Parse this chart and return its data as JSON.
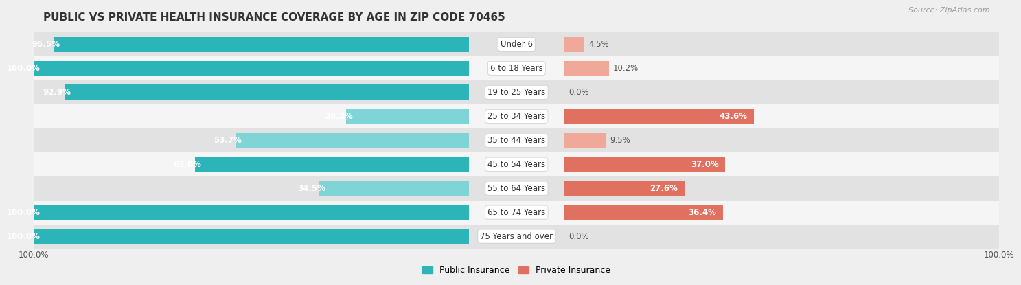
{
  "title": "PUBLIC VS PRIVATE HEALTH INSURANCE COVERAGE BY AGE IN ZIP CODE 70465",
  "source": "Source: ZipAtlas.com",
  "categories": [
    "Under 6",
    "6 to 18 Years",
    "19 to 25 Years",
    "25 to 34 Years",
    "35 to 44 Years",
    "45 to 54 Years",
    "55 to 64 Years",
    "65 to 74 Years",
    "75 Years and over"
  ],
  "public_values": [
    95.5,
    100.0,
    92.9,
    28.2,
    53.7,
    63.0,
    34.5,
    100.0,
    100.0
  ],
  "private_values": [
    4.5,
    10.2,
    0.0,
    43.6,
    9.5,
    37.0,
    27.6,
    36.4,
    0.0
  ],
  "public_color_strong": "#2bb5b8",
  "public_color_light": "#7fd4d6",
  "private_color_strong": "#e07060",
  "private_color_light": "#f0a898",
  "background_color": "#efefef",
  "row_bg_dark": "#e2e2e2",
  "row_bg_light": "#f5f5f5",
  "pub_strong_threshold": 60.0,
  "priv_strong_threshold": 25.0,
  "bar_height": 0.62,
  "title_fontsize": 11,
  "label_fontsize": 8.5,
  "tick_fontsize": 8.5,
  "legend_fontsize": 9,
  "source_fontsize": 8
}
